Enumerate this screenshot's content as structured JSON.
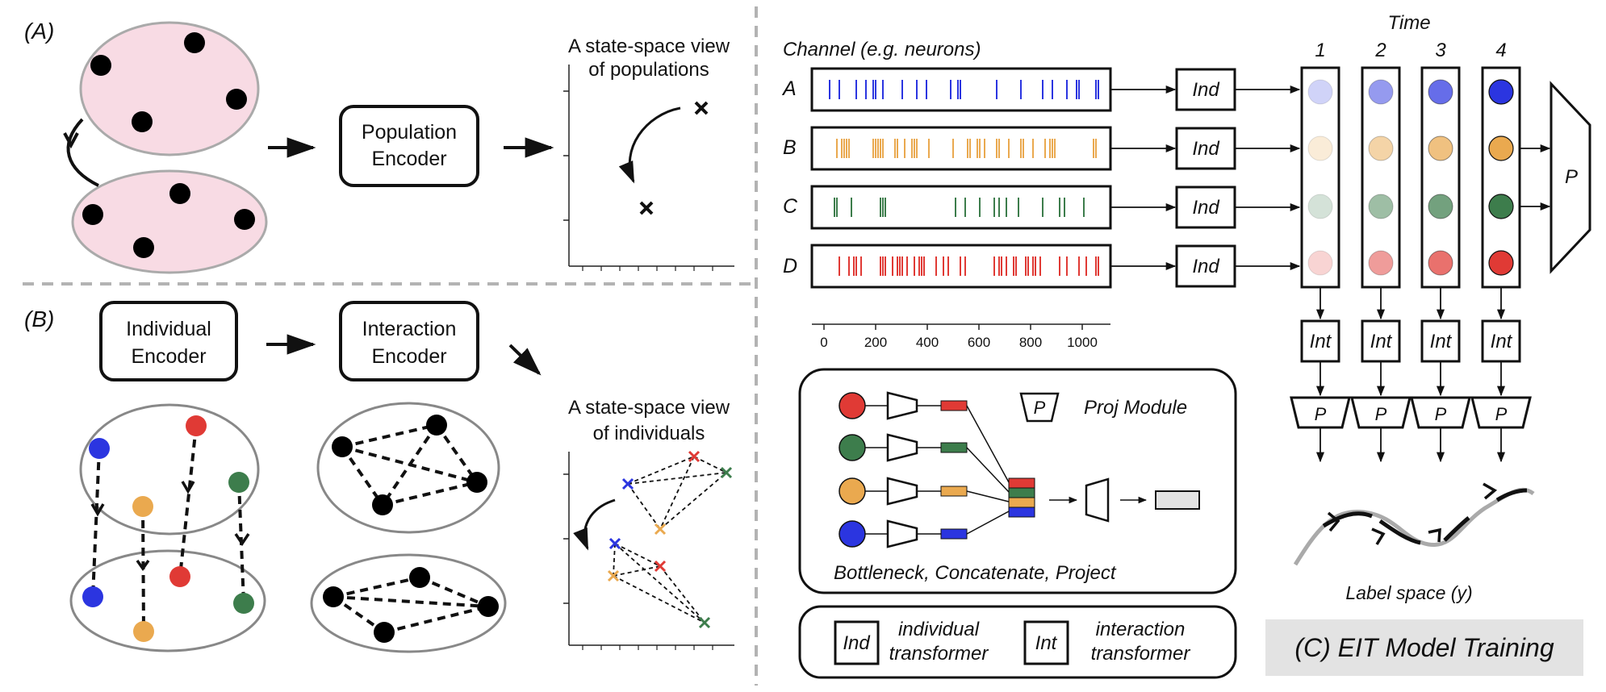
{
  "panel_a": {
    "tag": "(A)",
    "encoder_line1": "Population",
    "encoder_line2": "Encoder",
    "plot_title_line1": "A state-space view",
    "plot_title_line2": "of populations"
  },
  "panel_b": {
    "tag": "(B)",
    "individual_line1": "Individual",
    "individual_line2": "Encoder",
    "interaction_line1": "Interaction",
    "interaction_line2": "Encoder",
    "plot_title_line1": "A state-space view",
    "plot_title_line2": "of individuals"
  },
  "panel_c": {
    "time_label": "Time",
    "time_steps": [
      "1",
      "2",
      "3",
      "4"
    ],
    "channel_title": "Channel (e.g. neurons)",
    "channels": [
      "A",
      "B",
      "C",
      "D"
    ],
    "ind_label": "Ind",
    "int_label": "Int",
    "p_label": "P",
    "axis_ticks": [
      "0",
      "200",
      "400",
      "600",
      "800",
      "1000"
    ],
    "proj_module": "Proj Module",
    "bottleneck_caption": "Bottleneck, Concatenate, Project",
    "legend_ind_line1": "individual",
    "legend_ind_line2": "transformer",
    "legend_int_line1": "interaction",
    "legend_int_line2": "transformer",
    "label_space": "Label space (y)",
    "banner": "(C) EIT Model Training"
  },
  "colors": {
    "blue": "#2b35e0",
    "orange": "#eaa94f",
    "green": "#3d7d4c",
    "red": "#e03a35",
    "pink": "#f8dbe4",
    "banner_bg": "#e3e3e3",
    "divider": "#b3b3b3"
  }
}
